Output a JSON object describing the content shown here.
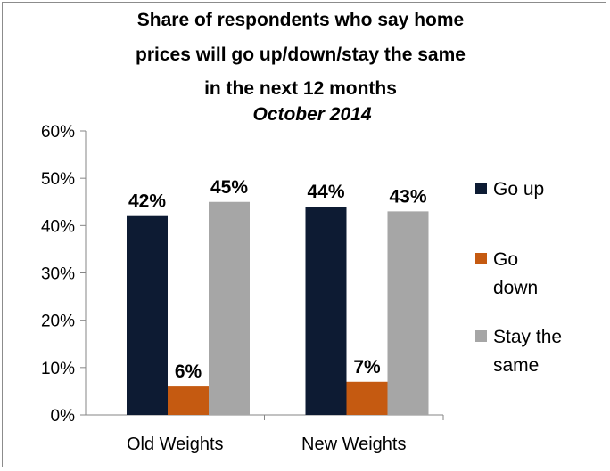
{
  "chart_data": {
    "type": "bar",
    "title_lines": [
      "Share of respondents who say home",
      "prices will go up/down/stay the same",
      "in the next 12 months"
    ],
    "subtitle": "October 2014",
    "categories": [
      "Old Weights",
      "New Weights"
    ],
    "series": [
      {
        "name": "Go up",
        "values": [
          42,
          44
        ],
        "labels": [
          "42%",
          "44%"
        ],
        "color": "#0d1b33"
      },
      {
        "name": "Go down",
        "values": [
          6,
          7
        ],
        "labels": [
          "6%",
          "7%"
        ],
        "color": "#c55a11"
      },
      {
        "name": "Stay the same",
        "values": [
          45,
          43
        ],
        "labels": [
          "45%",
          "43%"
        ],
        "color": "#a6a6a6"
      }
    ],
    "legend_lines": [
      [
        "Go up"
      ],
      [
        "Go",
        "down"
      ],
      [
        "Stay the",
        "same"
      ]
    ],
    "yticks": [
      "0%",
      "10%",
      "20%",
      "30%",
      "40%",
      "50%",
      "60%"
    ],
    "ylim": [
      0,
      60
    ],
    "legend_position": "right",
    "grid": false
  }
}
